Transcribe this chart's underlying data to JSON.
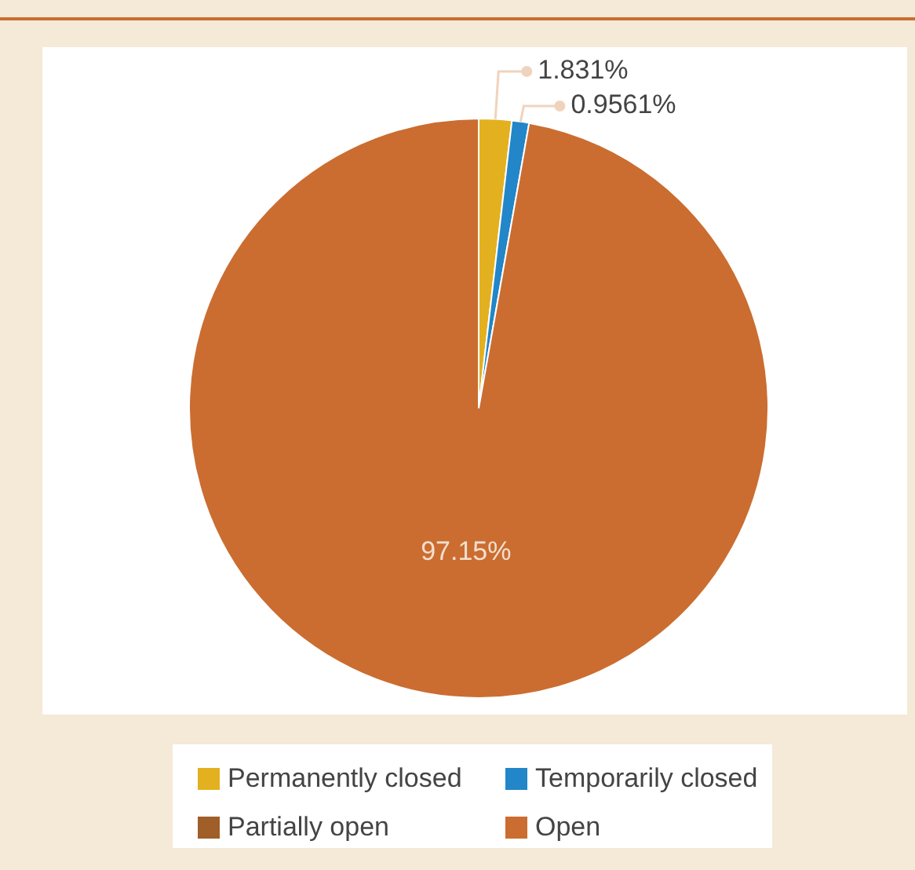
{
  "chart_data": {
    "type": "pie",
    "categories": [
      "Permanently closed",
      "Temporarily closed",
      "Partially open",
      "Open"
    ],
    "values": [
      1.831,
      0.9561,
      null,
      97.15
    ],
    "colors": [
      "#e3b11f",
      "#2286c8",
      "#a05e28",
      "#cb6d30"
    ],
    "value_labels": [
      "1.831%",
      "0.9561%",
      null,
      "97.15%"
    ],
    "legend": "bottom"
  }
}
